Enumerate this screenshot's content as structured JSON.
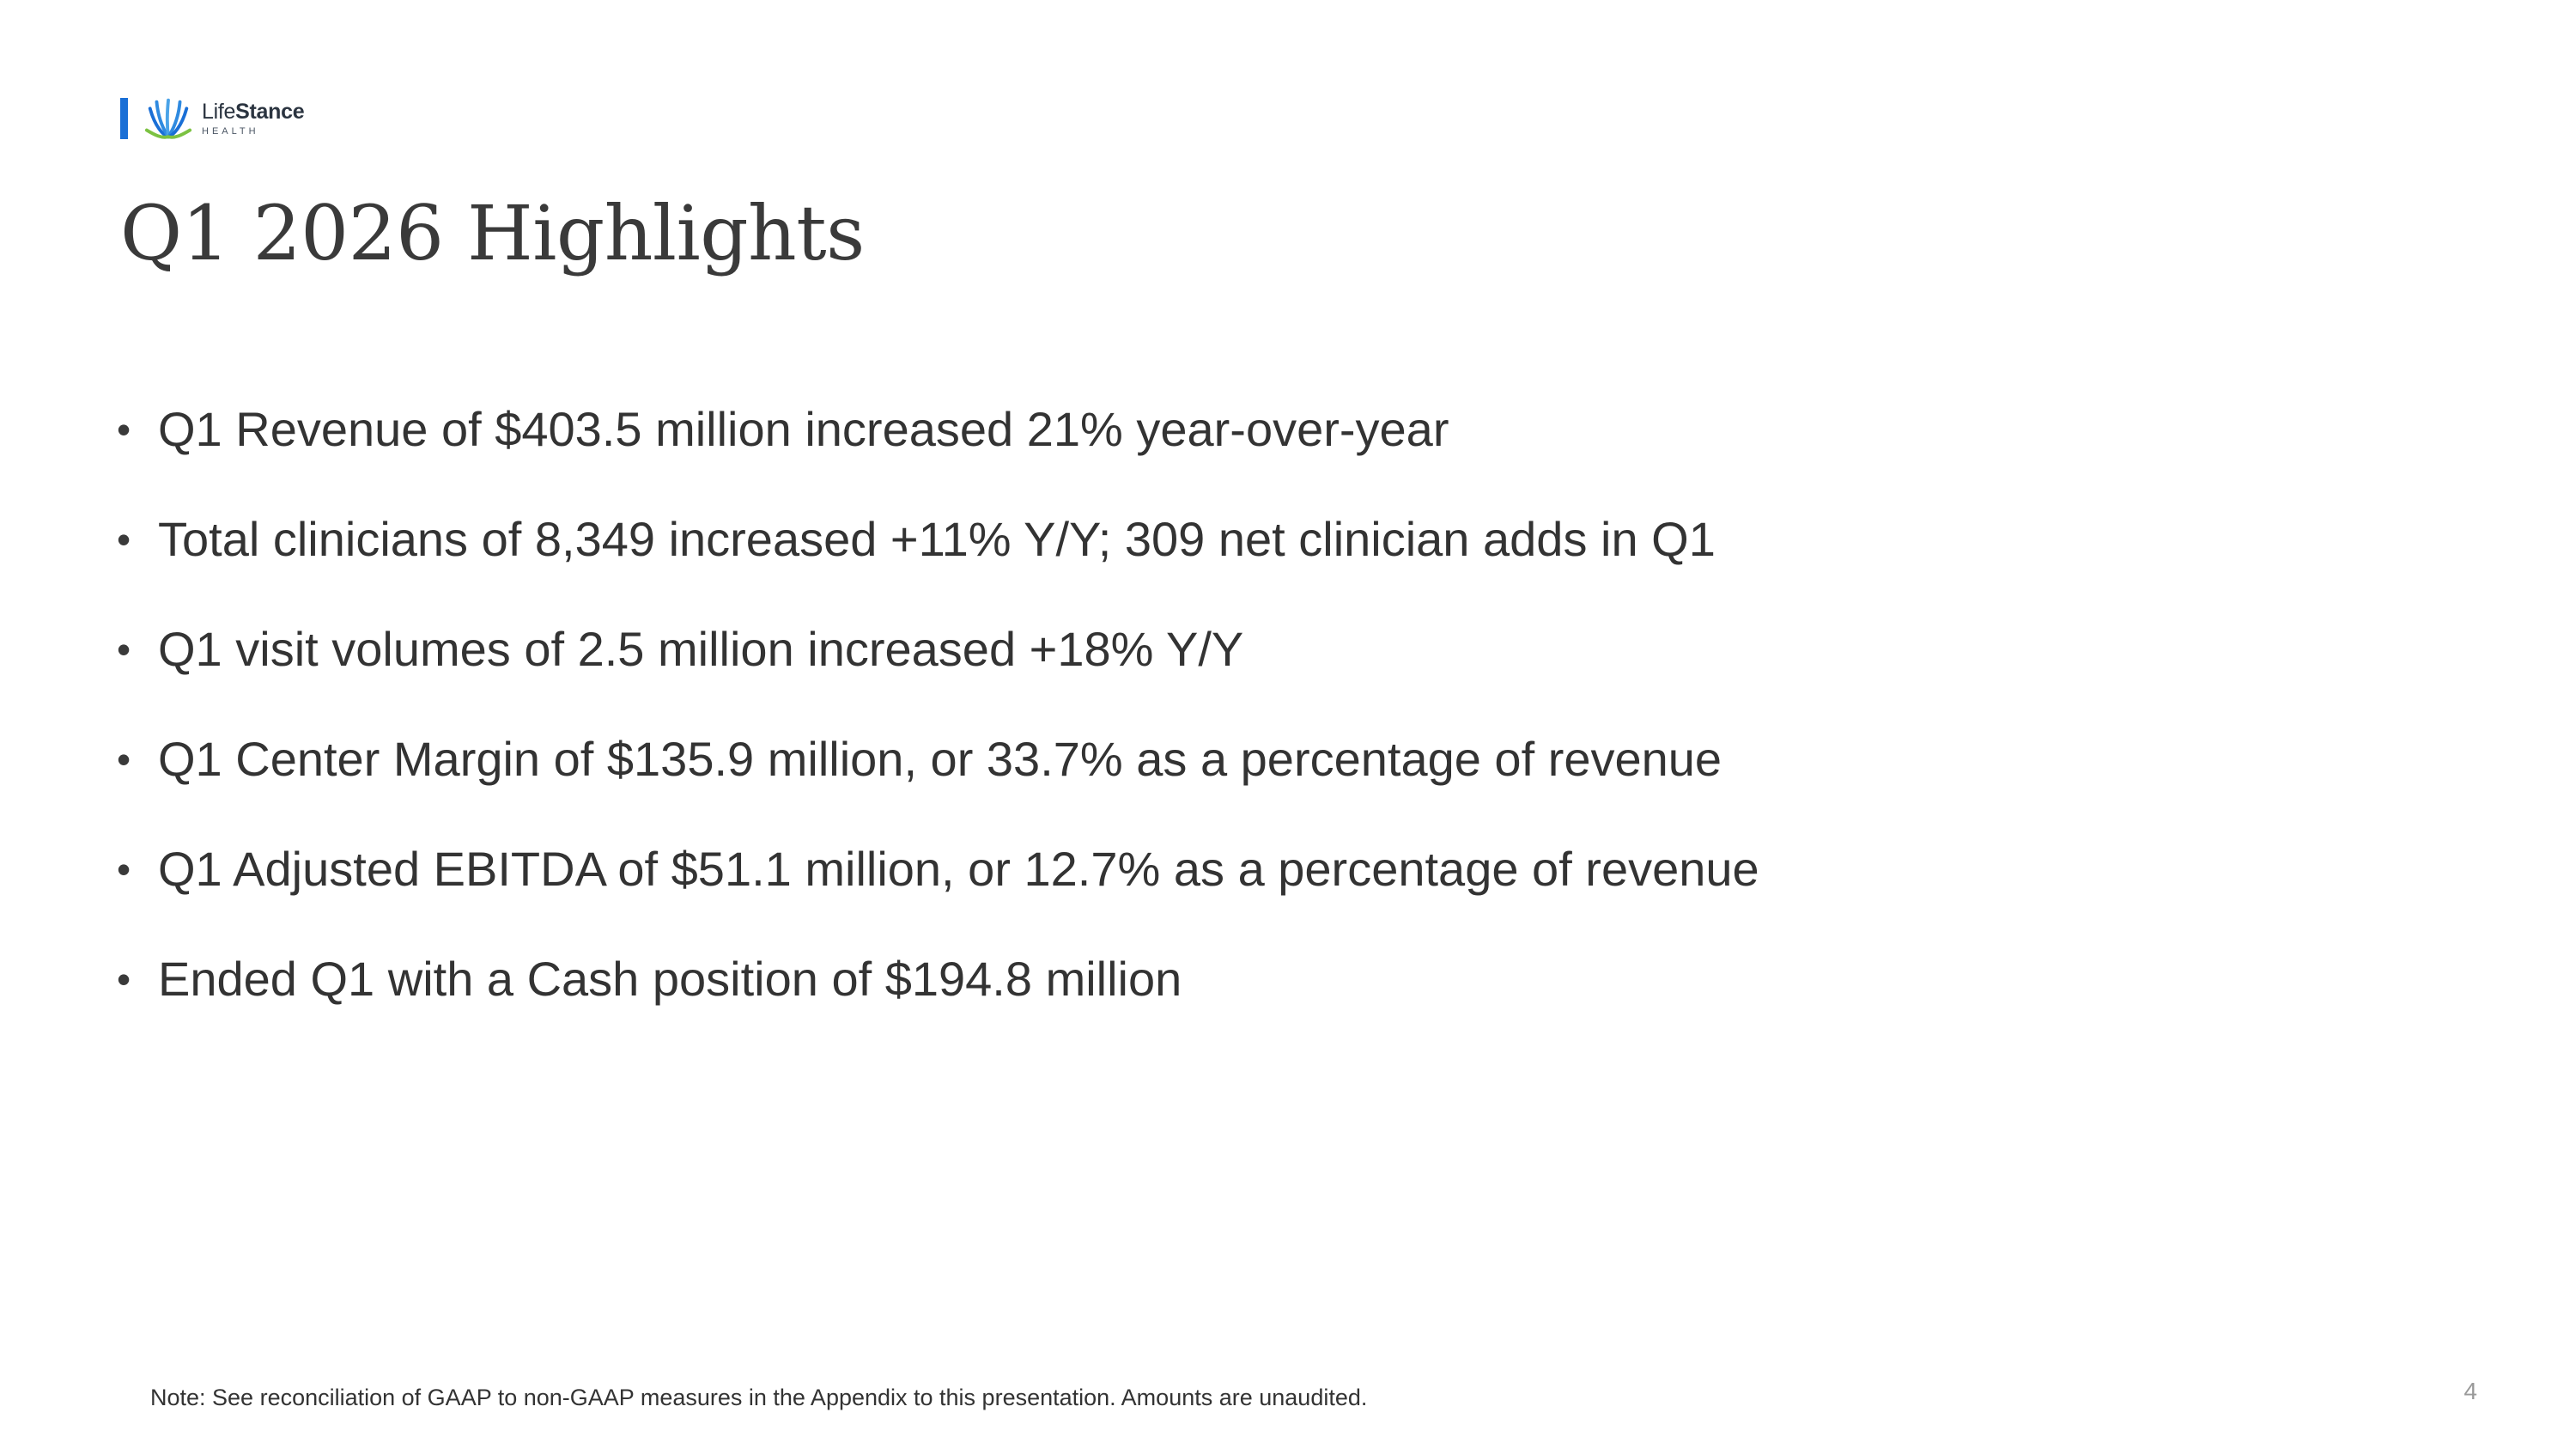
{
  "logo": {
    "name_light": "Life",
    "name_bold": "Stance",
    "subtitle": "HEALTH"
  },
  "slide": {
    "title": "Q1 2026 Highlights",
    "bullets": [
      "Q1 Revenue of $403.5 million increased 21% year-over-year",
      "Total clinicians of 8,349 increased +11% Y/Y; 309 net clinician adds in Q1",
      "Q1 visit volumes of 2.5 million increased +18% Y/Y",
      "Q1 Center Margin of $135.9 million, or 33.7% as a percentage of revenue",
      "Q1 Adjusted EBITDA of $51.1 million, or 12.7% as a percentage of revenue",
      "Ended Q1 with a Cash position of $194.8 million"
    ],
    "bullet_symbol": "•",
    "note": "Note:  See reconciliation of GAAP to non-GAAP measures in the Appendix to this presentation. Amounts are unaudited.",
    "page_number": "4"
  },
  "colors": {
    "brand_blue": "#1a6fd6",
    "brand_green": "#7cc242",
    "text": "#333333"
  }
}
